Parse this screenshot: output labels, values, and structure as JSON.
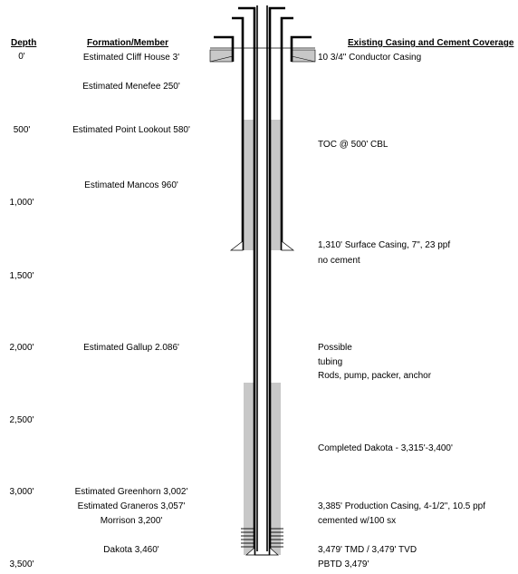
{
  "headers": {
    "depth": "Depth",
    "formation": "Formation/Member",
    "casing": "Existing Casing and Cement Coverage"
  },
  "depths": [
    "0'",
    "500'",
    "1,000'",
    "1,500'",
    "2,000'",
    "2,500'",
    "3,000'",
    "3,500'"
  ],
  "formations": [
    "Estimated Cliff House 3'",
    "Estimated Menefee 250'",
    "Estimated Point Lookout 580'",
    "Estimated Mancos 960'",
    "Estimated Gallup 2.086'",
    "Estimated Greenhorn 3,002'",
    "Estimated Graneros 3,057'",
    "Morrison 3,200'",
    "Dakota 3,460'"
  ],
  "notes": [
    "10 3/4\" Conductor  Casing",
    "TOC @ 500' CBL",
    "1,310' Surface Casing, 7\", 23 ppf",
    "no cement",
    "Possible",
    "tubing",
    "Rods, pump, packer, anchor",
    "Completed Dakota - 3,315'-3,400'",
    "3,385' Production Casing, 4-1/2\", 10.5 ppf",
    "cemented w/100 sx",
    "3,479' TMD / 3,479' TVD",
    "PBTD 3,479'"
  ],
  "colors": {
    "cement": "#c8c8c8",
    "lines": "#000000"
  }
}
